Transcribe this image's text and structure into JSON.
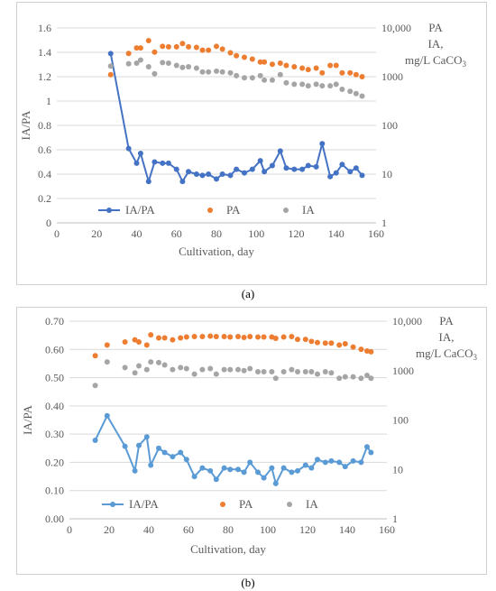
{
  "chart_data": [
    {
      "type": "line",
      "panel_label": "(a)",
      "xlabel": "Cultivation, day",
      "ylabel": "IA/PA",
      "y2label": [
        "PA",
        "IA,",
        "mg/L CaCO3"
      ],
      "xlim": [
        0,
        160
      ],
      "xticks": [
        0,
        20,
        40,
        60,
        80,
        100,
        120,
        140,
        160
      ],
      "ylim": [
        0,
        1.6
      ],
      "yticks": [
        "0",
        "0.2",
        "0.4",
        "0.6",
        "0.8",
        "1",
        "1.2",
        "1.4",
        "1.6"
      ],
      "y2scale": "log",
      "y2lim": [
        1,
        10000
      ],
      "y2ticks": [
        "1",
        "10",
        "100",
        "1000",
        "10,000"
      ],
      "legend_position": "bottom-inside",
      "series": [
        {
          "name": "IA/PA",
          "axis": "left",
          "style": "line-marker",
          "color": "#4472c4",
          "x": [
            27,
            36,
            40,
            42,
            46,
            49,
            53,
            56,
            60,
            63,
            66,
            70,
            73,
            76,
            80,
            83,
            87,
            90,
            94,
            98,
            102,
            104,
            108,
            112,
            115,
            119,
            123,
            126,
            130,
            133,
            137,
            140,
            143,
            147,
            150,
            153
          ],
          "y": [
            1.39,
            0.61,
            0.49,
            0.57,
            0.34,
            0.5,
            0.49,
            0.49,
            0.44,
            0.34,
            0.42,
            0.4,
            0.39,
            0.4,
            0.36,
            0.4,
            0.39,
            0.44,
            0.41,
            0.44,
            0.51,
            0.42,
            0.47,
            0.59,
            0.45,
            0.44,
            0.44,
            0.47,
            0.46,
            0.65,
            0.38,
            0.41,
            0.48,
            0.42,
            0.45,
            0.39
          ]
        },
        {
          "name": "PA",
          "axis": "right",
          "style": "marker",
          "color": "#ed7d31",
          "x": [
            27,
            36,
            40,
            42,
            46,
            49,
            53,
            56,
            60,
            63,
            66,
            70,
            73,
            76,
            80,
            83,
            87,
            90,
            94,
            98,
            102,
            104,
            108,
            112,
            115,
            119,
            123,
            126,
            130,
            133,
            137,
            140,
            143,
            147,
            150,
            153
          ],
          "y": [
            1100,
            3000,
            3900,
            3900,
            5500,
            3200,
            4200,
            4100,
            4100,
            4800,
            4100,
            4000,
            3500,
            3500,
            4200,
            3700,
            3100,
            2700,
            2500,
            2300,
            2000,
            2000,
            1800,
            1900,
            1700,
            1600,
            1500,
            1400,
            1500,
            1200,
            1700,
            1700,
            1200,
            1200,
            1100,
            1000
          ]
        },
        {
          "name": "IA",
          "axis": "right",
          "style": "marker",
          "color": "#a5a5a5",
          "x": [
            27,
            36,
            40,
            42,
            46,
            49,
            53,
            56,
            60,
            63,
            66,
            70,
            73,
            76,
            80,
            83,
            87,
            90,
            94,
            98,
            102,
            104,
            108,
            112,
            115,
            119,
            123,
            126,
            130,
            133,
            137,
            140,
            143,
            147,
            150,
            153
          ],
          "y": [
            1650,
            1850,
            1900,
            2200,
            1600,
            1150,
            1950,
            1900,
            1700,
            1550,
            1600,
            1500,
            1250,
            1250,
            1300,
            1250,
            1200,
            1050,
            950,
            950,
            1050,
            850,
            850,
            1100,
            750,
            700,
            700,
            650,
            700,
            650,
            650,
            700,
            550,
            500,
            450,
            400
          ]
        }
      ]
    },
    {
      "type": "line",
      "panel_label": "(b)",
      "xlabel": "Cultivation, day",
      "ylabel": "IA/PA",
      "y2label": [
        "PA",
        "IA,",
        "mg/L CaCO3"
      ],
      "xlim": [
        0,
        160
      ],
      "xticks": [
        0,
        20,
        40,
        60,
        80,
        100,
        120,
        140,
        160
      ],
      "ylim": [
        0,
        0.7
      ],
      "yticks": [
        "0.00",
        "0.10",
        "0.20",
        "0.30",
        "0.40",
        "0.50",
        "0.60",
        "0.70"
      ],
      "y2scale": "log",
      "y2lim": [
        1,
        10000
      ],
      "y2ticks": [
        "1",
        "10",
        "100",
        "1000",
        "10,000"
      ],
      "legend_position": "bottom-inside",
      "series": [
        {
          "name": "IA/PA",
          "axis": "left",
          "style": "line-marker",
          "color": "#5b9bd5",
          "x": [
            13,
            19,
            28,
            33,
            35,
            39,
            41,
            45,
            48,
            52,
            56,
            59,
            63,
            67,
            71,
            74,
            78,
            81,
            85,
            88,
            91,
            95,
            98,
            102,
            104,
            108,
            112,
            115,
            119,
            122,
            125,
            129,
            132,
            136,
            139,
            143,
            147,
            150,
            152
          ],
          "y": [
            0.278,
            0.365,
            0.257,
            0.17,
            0.26,
            0.29,
            0.19,
            0.25,
            0.235,
            0.22,
            0.235,
            0.21,
            0.15,
            0.18,
            0.17,
            0.14,
            0.18,
            0.175,
            0.175,
            0.165,
            0.2,
            0.165,
            0.145,
            0.18,
            0.125,
            0.18,
            0.165,
            0.17,
            0.19,
            0.18,
            0.21,
            0.2,
            0.205,
            0.2,
            0.185,
            0.205,
            0.2,
            0.255,
            0.235
          ]
        },
        {
          "name": "PA",
          "axis": "right",
          "style": "marker",
          "color": "#ed7d31",
          "x": [
            13,
            19,
            28,
            33,
            35,
            39,
            41,
            45,
            48,
            52,
            56,
            59,
            63,
            67,
            71,
            74,
            78,
            81,
            85,
            88,
            91,
            95,
            98,
            102,
            104,
            108,
            112,
            115,
            119,
            122,
            125,
            129,
            132,
            136,
            139,
            143,
            147,
            150,
            152
          ],
          "y": [
            2000,
            3300,
            3800,
            4200,
            3800,
            3300,
            5300,
            4600,
            4600,
            4200,
            4600,
            4800,
            4900,
            4900,
            5000,
            4900,
            4900,
            4800,
            4900,
            4700,
            4900,
            4800,
            4800,
            4800,
            4500,
            4800,
            4900,
            4300,
            4300,
            3900,
            3700,
            3600,
            3600,
            3300,
            3500,
            3000,
            2700,
            2500,
            2400
          ]
        },
        {
          "name": "IA",
          "axis": "right",
          "style": "marker",
          "color": "#a5a5a5",
          "x": [
            13,
            19,
            28,
            33,
            35,
            39,
            41,
            45,
            48,
            52,
            56,
            59,
            63,
            67,
            71,
            74,
            78,
            81,
            85,
            88,
            91,
            95,
            98,
            102,
            104,
            108,
            112,
            115,
            119,
            122,
            125,
            129,
            132,
            136,
            139,
            143,
            147,
            150,
            152
          ],
          "y": [
            500,
            1500,
            1150,
            900,
            1250,
            1050,
            1500,
            1450,
            1300,
            1050,
            1150,
            1100,
            850,
            1050,
            1100,
            850,
            1050,
            1050,
            1050,
            1000,
            1100,
            950,
            950,
            950,
            700,
            950,
            1050,
            950,
            950,
            950,
            850,
            950,
            900,
            700,
            750,
            750,
            700,
            800,
            700
          ]
        }
      ]
    }
  ]
}
